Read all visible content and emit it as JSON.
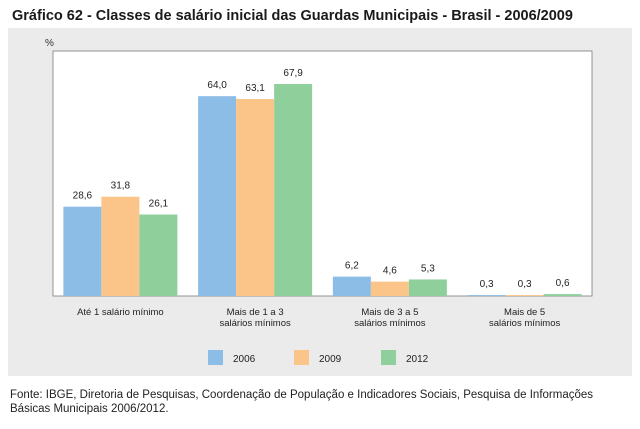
{
  "title": "Gráfico 62 - Classes de salário inicial das Guardas Municipais - Brasil - 2006/2009",
  "source": "Fonte: IBGE, Diretoria de Pesquisas, Coordenação de População e Indicadores Sociais, Pesquisa de Informações Básicas Municipais 2006/2012.",
  "chart_data": {
    "type": "bar",
    "title": "Gráfico 62 - Classes de salário inicial das Guardas Municipais - Brasil - 2006/2009",
    "ylabel": "%",
    "xlabel": "",
    "ylim": [
      0,
      70
    ],
    "grid": false,
    "legend_position": "bottom",
    "categories": [
      [
        "Até 1 salário mínimo"
      ],
      [
        "Mais de 1 a 3",
        "salários mínimos"
      ],
      [
        "Mais de 3 a 5",
        "salários mínimos"
      ],
      [
        "Mais de 5",
        "salários mínimos"
      ]
    ],
    "series": [
      {
        "name": "2006",
        "color": "#8bbde6",
        "values": [
          28.6,
          64.0,
          6.2,
          0.3
        ],
        "labels": [
          "28,6",
          "64,0",
          "6,2",
          "0,3"
        ]
      },
      {
        "name": "2009",
        "color": "#fbc58a",
        "values": [
          31.8,
          63.1,
          4.6,
          0.3
        ],
        "labels": [
          "31,8",
          "63,1",
          "4,6",
          "0,3"
        ]
      },
      {
        "name": "2012",
        "color": "#8ecf9b",
        "values": [
          26.1,
          67.9,
          5.3,
          0.6
        ],
        "labels": [
          "26,1",
          "67,9",
          "5,3",
          "0,6"
        ]
      }
    ]
  }
}
